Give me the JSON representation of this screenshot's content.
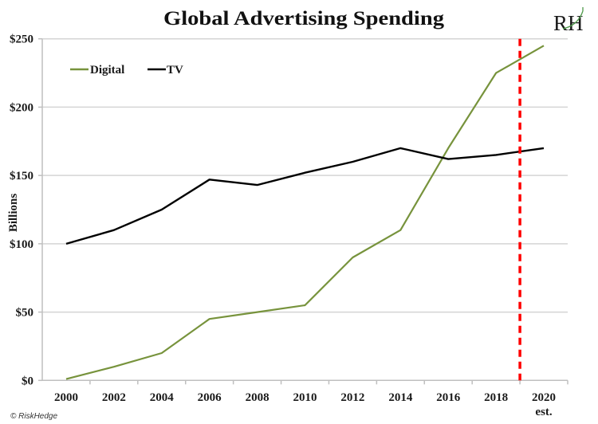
{
  "chart_data": {
    "type": "line",
    "title": "Global Advertising Spending",
    "xlabel": "",
    "ylabel": "Billions",
    "x": [
      2000,
      2002,
      2004,
      2006,
      2008,
      2010,
      2012,
      2014,
      2016,
      2018,
      2020
    ],
    "x_tick_labels": [
      "2000",
      "2002",
      "2004",
      "2006",
      "2008",
      "2010",
      "2012",
      "2014",
      "2016",
      "2018",
      "2020"
    ],
    "x_tick_sublabel": {
      "for": "2020",
      "text": "est."
    },
    "xlim": [
      1999,
      2021
    ],
    "y_ticks": [
      0,
      50,
      100,
      150,
      200,
      250
    ],
    "y_tick_labels": [
      "$0",
      "$50",
      "$100",
      "$150",
      "$200",
      "$250"
    ],
    "ylim": [
      0,
      250
    ],
    "grid": true,
    "legend_position": "top-left",
    "series": [
      {
        "name": "Digital",
        "color": "#77933c",
        "values": [
          1,
          10,
          20,
          45,
          50,
          55,
          90,
          110,
          170,
          225,
          245
        ]
      },
      {
        "name": "TV",
        "color": "#000000",
        "values": [
          100,
          110,
          125,
          147,
          143,
          152,
          160,
          170,
          162,
          165,
          170
        ]
      }
    ],
    "annotations": [
      {
        "type": "vertical-dashed-line",
        "x": 2019,
        "color": "#ff0000",
        "meaning": "estimate boundary"
      }
    ]
  },
  "branding": {
    "logo_text": "RH",
    "logo_accent_color": "#4e9a4a",
    "copyright": "© RiskHedge"
  }
}
